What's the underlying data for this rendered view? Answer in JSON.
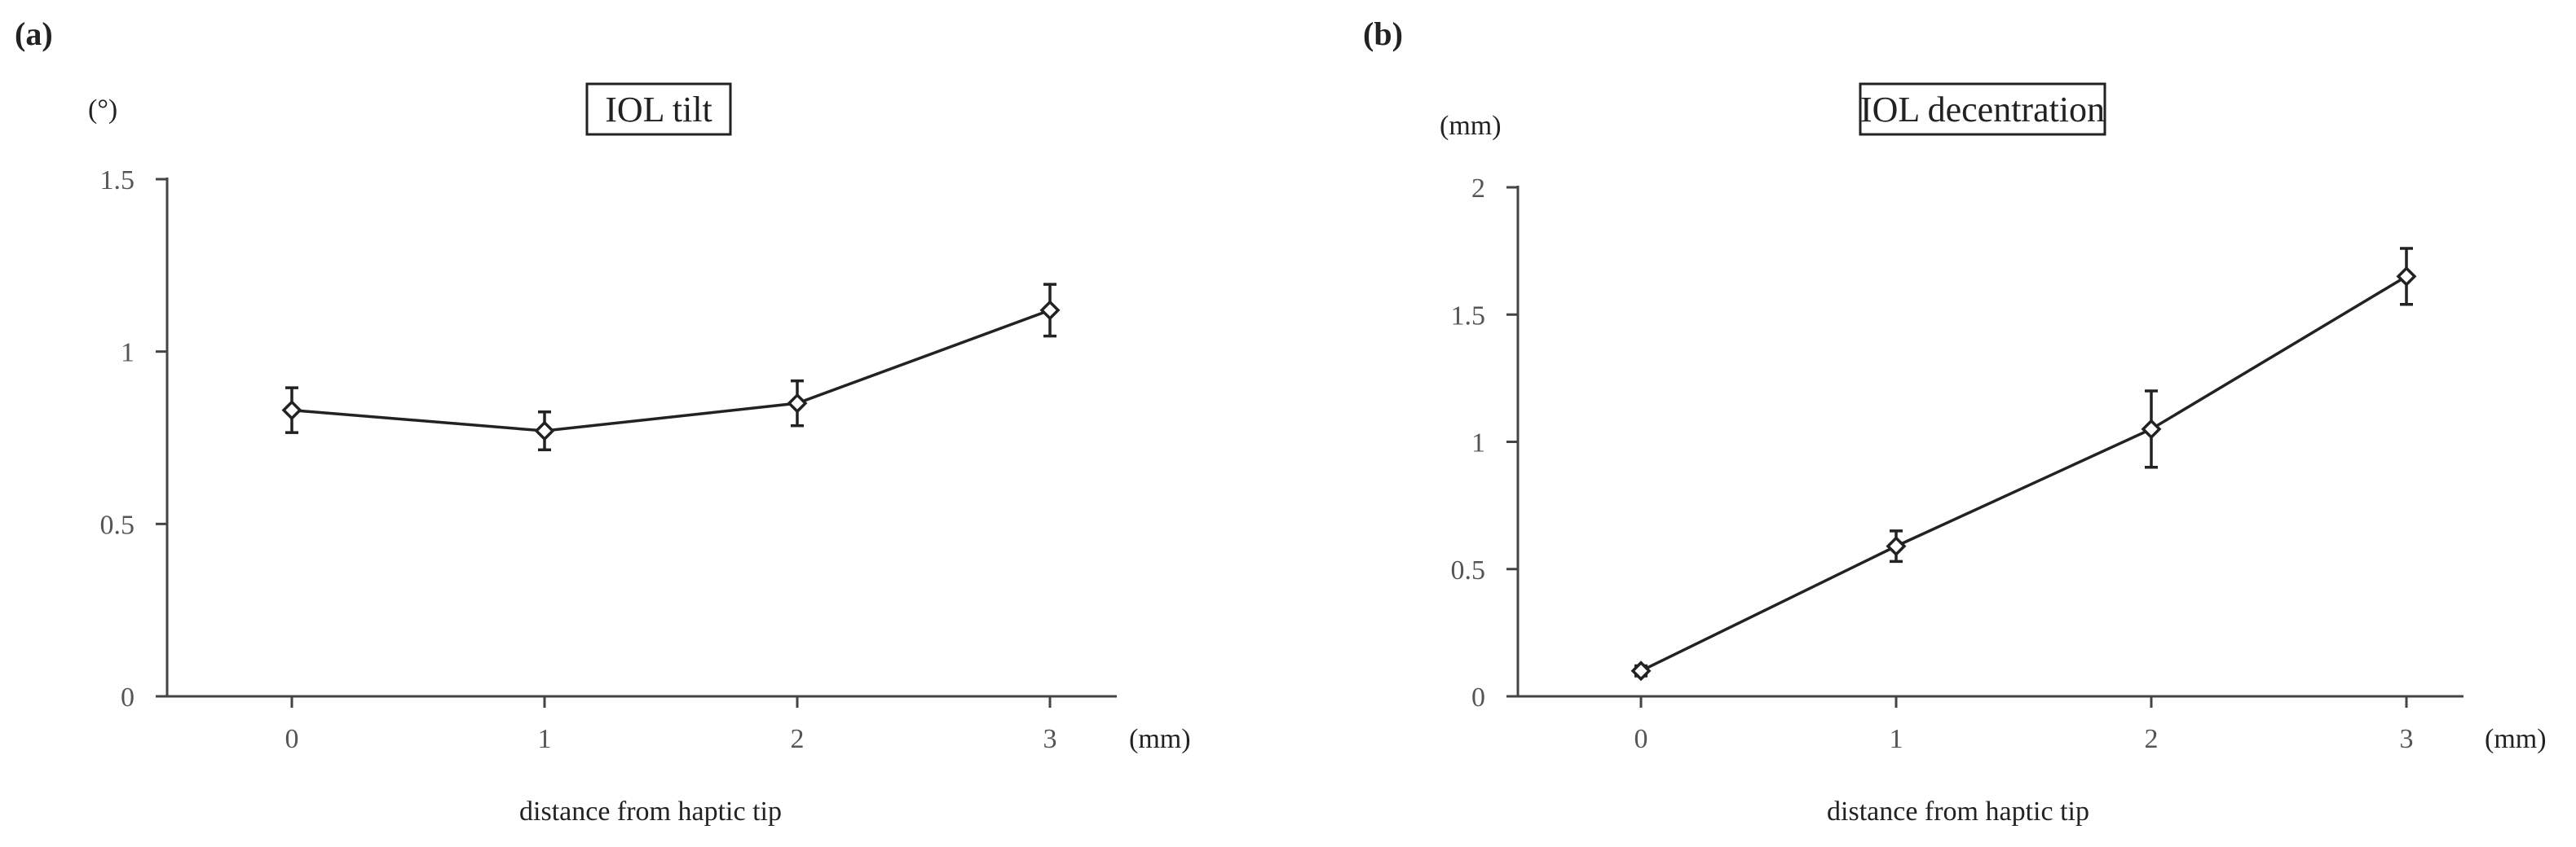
{
  "chart_data": [
    {
      "type": "line",
      "panel_label": "(a)",
      "title": "IOL tilt",
      "ylabel": "(°)",
      "xlabel": "distance from haptic tip",
      "x_unit": "(mm)",
      "categories": [
        "0",
        "1",
        "2",
        "3"
      ],
      "x": [
        0,
        1,
        2,
        3
      ],
      "ylim": [
        0,
        1.5
      ],
      "yticks": [
        "0",
        "0.5",
        "1",
        "1.5"
      ],
      "ytick_values": [
        0,
        0.5,
        1,
        1.5
      ],
      "series": [
        {
          "values": [
            0.83,
            0.77,
            0.85,
            1.12
          ],
          "error": [
            0.065,
            0.055,
            0.065,
            0.075
          ]
        }
      ],
      "marker": "open-diamond",
      "grid": false
    },
    {
      "type": "line",
      "panel_label": "(b)",
      "title": "IOL decentration",
      "ylabel": "(mm)",
      "xlabel": "distance from haptic tip",
      "x_unit": "(mm)",
      "categories": [
        "0",
        "1",
        "2",
        "3"
      ],
      "x": [
        0,
        1,
        2,
        3
      ],
      "ylim": [
        0,
        2
      ],
      "yticks": [
        "0",
        "0.5",
        "1",
        "1.5",
        "2"
      ],
      "ytick_values": [
        0,
        0.5,
        1,
        1.5,
        2
      ],
      "series": [
        {
          "values": [
            0.1,
            0.59,
            1.05,
            1.65
          ],
          "error": [
            0.02,
            0.06,
            0.15,
            0.11
          ]
        }
      ],
      "marker": "open-diamond",
      "grid": false
    }
  ]
}
